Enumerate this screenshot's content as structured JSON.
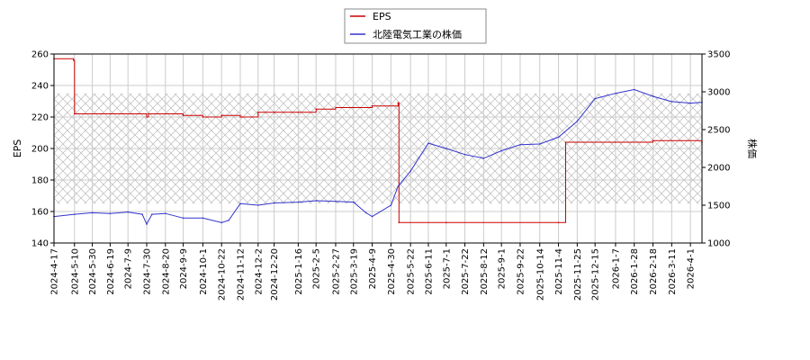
{
  "chart_data": {
    "type": "line",
    "ylabel_left": "EPS",
    "ylabel_right": "株価",
    "ylim_left": [
      140,
      260
    ],
    "ylim_right": [
      1000,
      3500
    ],
    "yticks_left": [
      140,
      160,
      180,
      200,
      220,
      240,
      260
    ],
    "yticks_right": [
      1000,
      1500,
      2000,
      2500,
      3000,
      3500
    ],
    "grid": true,
    "hatched_band_left": [
      165,
      235
    ],
    "legend": {
      "position": "top-center",
      "entries": [
        "EPS",
        "北陸電気工業の株価"
      ]
    },
    "x_tick_labels": [
      "2024-4-17",
      "2024-5-10",
      "2024-5-30",
      "2024-6-19",
      "2024-7-9",
      "2024-7-30",
      "2024-8-20",
      "2024-9-9",
      "2024-10-1",
      "2024-10-22",
      "2024-11-12",
      "2024-12-2",
      "2024-12-20",
      "2025-1-16",
      "2025-2-5",
      "2025-2-27",
      "2025-3-19",
      "2025-4-9",
      "2025-4-30",
      "2025-5-22",
      "2025-6-11",
      "2025-7-1",
      "2025-7-22",
      "2025-8-12",
      "2025-9-1",
      "2025-9-22",
      "2025-10-14",
      "2025-11-4",
      "2025-11-25",
      "2025-12-15",
      "2026-1-7",
      "2026-1-28",
      "2026-2-18",
      "2026-3-11",
      "2026-4-1"
    ],
    "series": [
      {
        "name": "EPS",
        "color": "#cc0000",
        "axis": "left",
        "step": true,
        "x": [
          "2024-4-17",
          "2024-5-9",
          "2024-5-10",
          "2024-6-20",
          "2024-7-30",
          "2024-8-1",
          "2024-9-9",
          "2024-10-1",
          "2024-10-22",
          "2024-11-12",
          "2024-12-2",
          "2024-12-20",
          "2025-1-16",
          "2025-2-5",
          "2025-2-27",
          "2025-3-19",
          "2025-4-9",
          "2025-5-8",
          "2025-5-9",
          "2025-7-1",
          "2025-11-4",
          "2025-11-12",
          "2026-1-7",
          "2026-2-18",
          "2026-4-14"
        ],
        "values": [
          257,
          256,
          222,
          222,
          220,
          222,
          221,
          220,
          221,
          220,
          223,
          223,
          223,
          225,
          226,
          226,
          227,
          229,
          153,
          153,
          153,
          204,
          204,
          205,
          204
        ]
      },
      {
        "name": "北陸電気工業の株価",
        "color": "#3333cc",
        "axis": "right",
        "step": false,
        "x": [
          "2024-4-17",
          "2024-5-10",
          "2024-5-30",
          "2024-6-19",
          "2024-7-9",
          "2024-7-25",
          "2024-7-30",
          "2024-8-5",
          "2024-8-20",
          "2024-9-9",
          "2024-10-1",
          "2024-10-22",
          "2024-10-30",
          "2024-11-12",
          "2024-12-2",
          "2024-12-20",
          "2025-1-16",
          "2025-2-5",
          "2025-2-27",
          "2025-3-19",
          "2025-4-2",
          "2025-4-9",
          "2025-4-30",
          "2025-5-8",
          "2025-5-22",
          "2025-6-11",
          "2025-7-1",
          "2025-7-22",
          "2025-8-12",
          "2025-9-1",
          "2025-9-22",
          "2025-10-14",
          "2025-11-4",
          "2025-11-25",
          "2025-12-15",
          "2026-1-7",
          "2026-1-28",
          "2026-2-18",
          "2026-3-11",
          "2026-4-1",
          "2026-4-14"
        ],
        "values": [
          1350,
          1380,
          1400,
          1390,
          1410,
          1380,
          1250,
          1380,
          1390,
          1330,
          1330,
          1270,
          1300,
          1520,
          1500,
          1530,
          1540,
          1560,
          1550,
          1540,
          1400,
          1350,
          1500,
          1750,
          1950,
          2320,
          2250,
          2170,
          2120,
          2220,
          2300,
          2310,
          2400,
          2610,
          2910,
          2980,
          3030,
          2940,
          2870,
          2850,
          2860
        ]
      }
    ]
  }
}
